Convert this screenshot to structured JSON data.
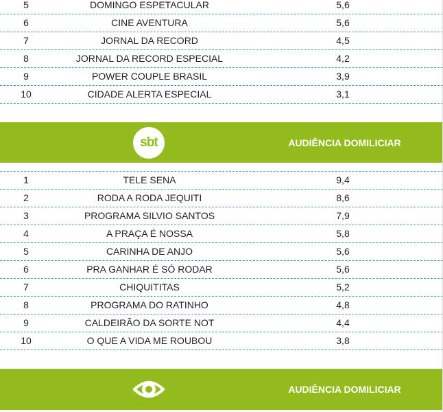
{
  "sections": [
    {
      "rows": [
        [
          "5",
          "DOMINGO ESPETACULAR",
          "5,6"
        ],
        [
          "6",
          "CINE AVENTURA",
          "5,6"
        ],
        [
          "7",
          "JORNAL DA RECORD",
          "4,5"
        ],
        [
          "8",
          "JORNAL DA RECORD ESPECIAL",
          "4,2"
        ],
        [
          "9",
          "POWER COUPLE BRASIL",
          "3,9"
        ],
        [
          "10",
          "CIDADE ALERTA ESPECIAL",
          "3,1"
        ]
      ]
    },
    {
      "header": {
        "logo": "sbt",
        "label": "AUDIÊNCIA DOMILICIAR"
      },
      "rows": [
        [
          "1",
          "TELE SENA",
          "9,4"
        ],
        [
          "2",
          "RODA A RODA JEQUITI",
          "8,6"
        ],
        [
          "3",
          "PROGRAMA SILVIO SANTOS",
          "7,9"
        ],
        [
          "4",
          "A PRAÇA É NOSSA",
          "5,8"
        ],
        [
          "5",
          "CARINHA DE ANJO",
          "5,6"
        ],
        [
          "6",
          "PRA GANHAR É SÓ RODAR",
          "5,6"
        ],
        [
          "7",
          "CHIQUITITAS",
          "5,2"
        ],
        [
          "8",
          "PROGRAMA DO RATINHO",
          "4,8"
        ],
        [
          "9",
          "CALDEIRÃO DA SORTE NOT",
          "4,4"
        ],
        [
          "10",
          "O QUE A VIDA ME ROUBOU",
          "3,8"
        ]
      ]
    },
    {
      "header": {
        "label": "AUDIÊNCIA DOMILICIAR"
      }
    }
  ]
}
